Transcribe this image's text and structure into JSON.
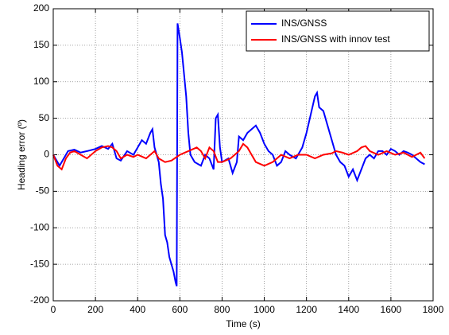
{
  "chart_data": {
    "type": "line",
    "xlabel": "Time (s)",
    "ylabel": "Heading error (º)",
    "xlim": [
      0,
      1800
    ],
    "xticks": [
      0,
      200,
      400,
      600,
      800,
      1000,
      1200,
      1400,
      1600,
      1800
    ],
    "ylim": [
      -200,
      200
    ],
    "yticks": [
      -200,
      -150,
      -100,
      -50,
      0,
      50,
      100,
      150,
      200
    ],
    "grid": true,
    "legend": "upper right",
    "series": [
      {
        "name": "INS/GNSS",
        "color": "#0000ff",
        "x": [
          0,
          30,
          50,
          70,
          100,
          130,
          160,
          200,
          230,
          260,
          280,
          300,
          320,
          350,
          380,
          400,
          420,
          440,
          460,
          470,
          480,
          500,
          510,
          520,
          530,
          540,
          550,
          560,
          570,
          580,
          585,
          589,
          600,
          610,
          620,
          630,
          640,
          650,
          670,
          700,
          720,
          740,
          760,
          770,
          780,
          790,
          800,
          830,
          850,
          870,
          880,
          900,
          920,
          940,
          960,
          980,
          1000,
          1020,
          1040,
          1060,
          1080,
          1100,
          1120,
          1150,
          1180,
          1200,
          1220,
          1240,
          1250,
          1260,
          1280,
          1300,
          1320,
          1340,
          1360,
          1380,
          1400,
          1420,
          1440,
          1460,
          1480,
          1500,
          1520,
          1540,
          1560,
          1580,
          1600,
          1620,
          1640,
          1660,
          1680,
          1700,
          1720,
          1740,
          1760
        ],
        "values": [
          0,
          -15,
          -5,
          5,
          7,
          3,
          5,
          8,
          12,
          8,
          15,
          -5,
          -8,
          5,
          0,
          10,
          20,
          15,
          30,
          35,
          10,
          -10,
          -40,
          -60,
          -110,
          -120,
          -140,
          -150,
          -160,
          -175,
          -180,
          180,
          160,
          140,
          110,
          80,
          30,
          0,
          -10,
          -15,
          0,
          -5,
          -20,
          50,
          55,
          10,
          -10,
          -5,
          -25,
          -10,
          25,
          20,
          30,
          35,
          40,
          30,
          15,
          5,
          0,
          -15,
          -10,
          5,
          0,
          -5,
          10,
          30,
          55,
          80,
          85,
          65,
          60,
          40,
          20,
          0,
          -10,
          -15,
          -30,
          -20,
          -35,
          -20,
          -5,
          0,
          -5,
          5,
          5,
          0,
          8,
          5,
          0,
          5,
          3,
          0,
          -5,
          -10,
          -13
        ]
      },
      {
        "name": "INS/GNSS with innov test",
        "color": "#ff0000",
        "x": [
          0,
          20,
          40,
          60,
          80,
          100,
          130,
          160,
          200,
          230,
          260,
          280,
          300,
          320,
          350,
          380,
          400,
          440,
          460,
          480,
          500,
          530,
          560,
          600,
          640,
          680,
          700,
          720,
          740,
          760,
          780,
          800,
          840,
          880,
          900,
          920,
          940,
          960,
          1000,
          1040,
          1080,
          1120,
          1160,
          1200,
          1240,
          1280,
          1320,
          1340,
          1370,
          1400,
          1440,
          1460,
          1480,
          1500,
          1540,
          1580,
          1620,
          1660,
          1700,
          1720,
          1740,
          1760
        ],
        "values": [
          0,
          -15,
          -20,
          -5,
          3,
          5,
          0,
          -5,
          5,
          10,
          12,
          10,
          5,
          -5,
          0,
          -3,
          0,
          -5,
          0,
          5,
          -5,
          -10,
          -8,
          0,
          5,
          10,
          5,
          -5,
          10,
          5,
          -10,
          -10,
          -5,
          5,
          15,
          10,
          0,
          -10,
          -15,
          -10,
          0,
          -5,
          0,
          0,
          -5,
          0,
          2,
          5,
          3,
          0,
          5,
          10,
          12,
          5,
          0,
          5,
          0,
          3,
          -3,
          0,
          3,
          -5
        ]
      }
    ]
  }
}
